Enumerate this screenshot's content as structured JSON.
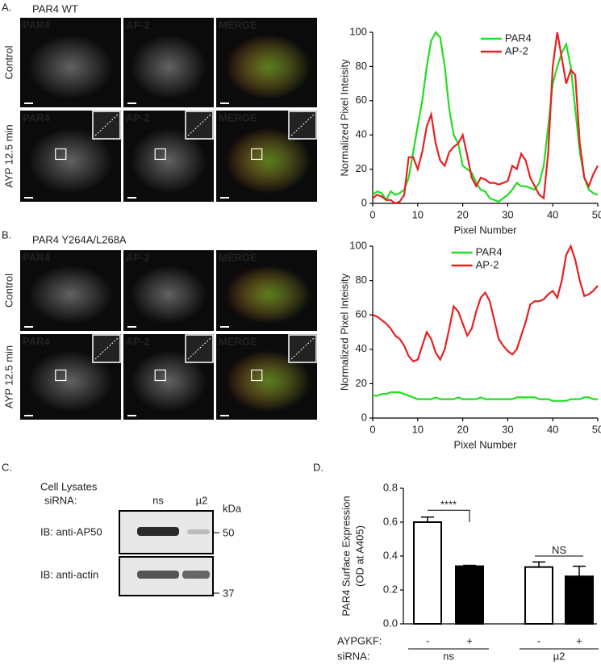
{
  "panel_a": {
    "label": "A.",
    "title": "PAR4 WT",
    "rows": [
      "Control",
      "AYP 12.5 min"
    ],
    "channels": [
      "PAR4",
      "AP-2",
      "MERGE"
    ]
  },
  "panel_b": {
    "label": "B.",
    "title": "PAR4 Y264A/L268A",
    "rows": [
      "Control",
      "AYP 12.5 min"
    ],
    "channels": [
      "PAR4",
      "AP-2",
      "MERGE"
    ]
  },
  "panel_c": {
    "label": "C.",
    "header": "Cell Lysates",
    "sirna_label": "siRNA:",
    "lanes": [
      "ns",
      "µ2"
    ],
    "unit": "kDa",
    "blots": [
      {
        "label": "IB: anti-AP50",
        "marker": "50"
      },
      {
        "label": "IB: anti-actin",
        "marker": "37"
      }
    ]
  },
  "panel_d": {
    "label": "D."
  },
  "chart_data": [
    {
      "type": "line",
      "ylabel": "Normalized Pixel Inteisity",
      "xlabel": "Pixel Number",
      "legend": "upper center",
      "x": [
        0,
        1,
        2,
        3,
        4,
        5,
        6,
        7,
        8,
        9,
        10,
        11,
        12,
        13,
        14,
        15,
        16,
        17,
        18,
        19,
        20,
        21,
        22,
        23,
        24,
        25,
        26,
        27,
        28,
        29,
        30,
        31,
        32,
        33,
        34,
        35,
        36,
        37,
        38,
        39,
        40,
        41,
        42,
        43,
        44,
        45,
        46,
        47,
        48,
        49,
        50
      ],
      "series": [
        {
          "name": "PAR4",
          "color": "#22dd22",
          "values": [
            5,
            7,
            6,
            2,
            7,
            5,
            6,
            8,
            15,
            30,
            45,
            60,
            80,
            95,
            100,
            97,
            80,
            55,
            40,
            35,
            22,
            20,
            18,
            12,
            8,
            7,
            3,
            2,
            1,
            3,
            5,
            8,
            12,
            10,
            10,
            9,
            8,
            12,
            22,
            45,
            70,
            80,
            88,
            93,
            80,
            55,
            30,
            15,
            8,
            6,
            5
          ]
        },
        {
          "name": "AP-2",
          "color": "#e82020",
          "values": [
            3,
            5,
            4,
            2,
            2,
            0,
            1,
            5,
            27,
            27,
            20,
            30,
            45,
            52,
            35,
            25,
            22,
            30,
            33,
            35,
            40,
            28,
            15,
            10,
            15,
            14,
            12,
            12,
            11,
            12,
            13,
            22,
            20,
            29,
            25,
            15,
            10,
            5,
            3,
            30,
            80,
            100,
            85,
            70,
            78,
            75,
            35,
            15,
            10,
            17,
            22
          ]
        }
      ],
      "xlim": [
        0,
        50
      ],
      "ylim": [
        0,
        100
      ],
      "xticks": [
        0,
        10,
        20,
        30,
        40,
        50
      ],
      "yticks": [
        0,
        20,
        40,
        60,
        80,
        100
      ]
    },
    {
      "type": "line",
      "ylabel": "Normalized Pixel Inteisity",
      "xlabel": "Pixel Number",
      "legend": "upper left",
      "x": [
        0,
        1,
        2,
        3,
        4,
        5,
        6,
        7,
        8,
        9,
        10,
        11,
        12,
        13,
        14,
        15,
        16,
        17,
        18,
        19,
        20,
        21,
        22,
        23,
        24,
        25,
        26,
        27,
        28,
        29,
        30,
        31,
        32,
        33,
        34,
        35,
        36,
        37,
        38,
        39,
        40,
        41,
        42,
        43,
        44,
        45,
        46,
        47,
        48,
        49,
        50
      ],
      "series": [
        {
          "name": "PAR4",
          "color": "#22dd22",
          "values": [
            13,
            13,
            14,
            14,
            15,
            15,
            15,
            14,
            13,
            12,
            11,
            11,
            11,
            11,
            12,
            11,
            11,
            11,
            11,
            12,
            11,
            11,
            11,
            11,
            12,
            11,
            11,
            11,
            11,
            11,
            11,
            11,
            12,
            12,
            12,
            12,
            12,
            11,
            11,
            11,
            10,
            10,
            10,
            10,
            11,
            11,
            11,
            12,
            12,
            11,
            11
          ]
        },
        {
          "name": "AP-2",
          "color": "#e82020",
          "values": [
            60,
            59,
            57,
            55,
            52,
            48,
            46,
            42,
            36,
            33,
            34,
            42,
            50,
            46,
            38,
            34,
            40,
            52,
            65,
            62,
            55,
            48,
            52,
            62,
            70,
            73,
            68,
            57,
            46,
            42,
            39,
            37,
            40,
            48,
            56,
            66,
            68,
            68,
            69,
            72,
            74,
            70,
            80,
            95,
            100,
            92,
            80,
            71,
            72,
            74,
            77
          ]
        }
      ],
      "xlim": [
        0,
        50
      ],
      "ylim": [
        0,
        100
      ],
      "xticks": [
        0,
        10,
        20,
        30,
        40,
        50
      ],
      "yticks": [
        0,
        20,
        40,
        60,
        80,
        100
      ]
    },
    {
      "type": "bar",
      "ylabel": [
        "PAR4 Surface Expression",
        "(OD at A405)"
      ],
      "category_label": "AYPGKF:",
      "categories": [
        "-",
        "+",
        "-",
        "+"
      ],
      "group_label": "siRNA:",
      "groups": [
        "ns",
        "µ2"
      ],
      "values": [
        0.6,
        0.34,
        0.335,
        0.28
      ],
      "errors": [
        0.03,
        0.005,
        0.03,
        0.06
      ],
      "colors": [
        "#ffffff",
        "#000000",
        "#ffffff",
        "#000000"
      ],
      "annotations": [
        "****",
        "NS"
      ],
      "ylim": [
        0,
        0.8
      ],
      "yticks": [
        {
          "value": 0,
          "label": "0.0"
        },
        0.2,
        0.4,
        0.6,
        0.8
      ]
    }
  ]
}
